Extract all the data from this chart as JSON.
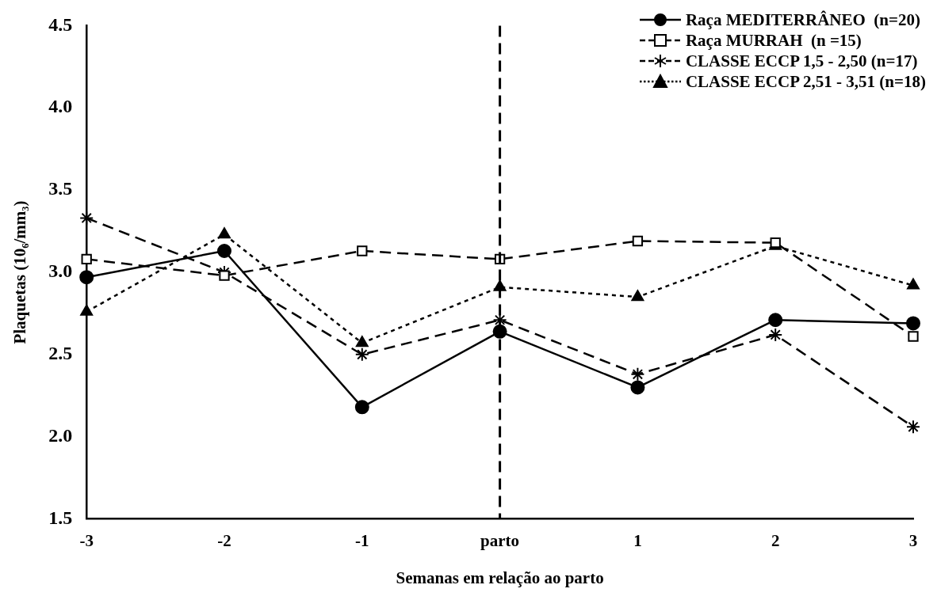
{
  "chart_data": {
    "type": "line",
    "xlabel": "Semanas em relação ao parto",
    "ylabel": "Plaquetas (10₆/mm₃)",
    "categories": [
      "-3",
      "-2",
      "-1",
      "parto",
      "1",
      "2",
      "3"
    ],
    "ylim": [
      1.5,
      4.5
    ],
    "yticks": [
      {
        "value": 1.5,
        "label": "1.5"
      },
      {
        "value": 2,
        "label": "2.0"
      },
      {
        "value": 2.5,
        "label": "2.5"
      },
      {
        "value": 3,
        "label": "3.0"
      },
      {
        "value": 3.5,
        "label": "3.5"
      },
      {
        "value": 4,
        "label": "4.0"
      },
      {
        "value": 4.5,
        "label": "4.5"
      }
    ],
    "grid": false,
    "legend": "top right",
    "ref_lines": [
      {
        "axis": "x",
        "value": "parto",
        "color": "#000000",
        "line_style": "dashed"
      }
    ],
    "series": [
      {
        "name": "Raça MEDITERRÂNEO  (n=20)",
        "color": "#000000",
        "marker": "circle",
        "line_style": "solid",
        "values": [
          2.97,
          3.13,
          2.18,
          2.64,
          2.3,
          2.71,
          2.69
        ]
      },
      {
        "name": "Raça MURRAH  (n =15)",
        "color": "#000000",
        "marker": "square",
        "line_style": "dashed",
        "values": [
          3.08,
          2.98,
          3.13,
          3.08,
          3.19,
          3.18,
          2.61
        ]
      },
      {
        "name": "CLASSE ECCP 1,5 - 2,50 (n=17)",
        "color": "#000000",
        "marker": "cross",
        "line_style": "dashed",
        "values": [
          3.33,
          3.0,
          2.5,
          2.71,
          2.38,
          2.62,
          2.06
        ]
      },
      {
        "name": "CLASSE ECCP 2,51 - 3,51 (n=18)",
        "color": "#000000",
        "marker": "triangle",
        "line_style": "dotted",
        "values": [
          2.76,
          3.23,
          2.57,
          2.91,
          2.85,
          3.16,
          2.92
        ]
      }
    ]
  }
}
